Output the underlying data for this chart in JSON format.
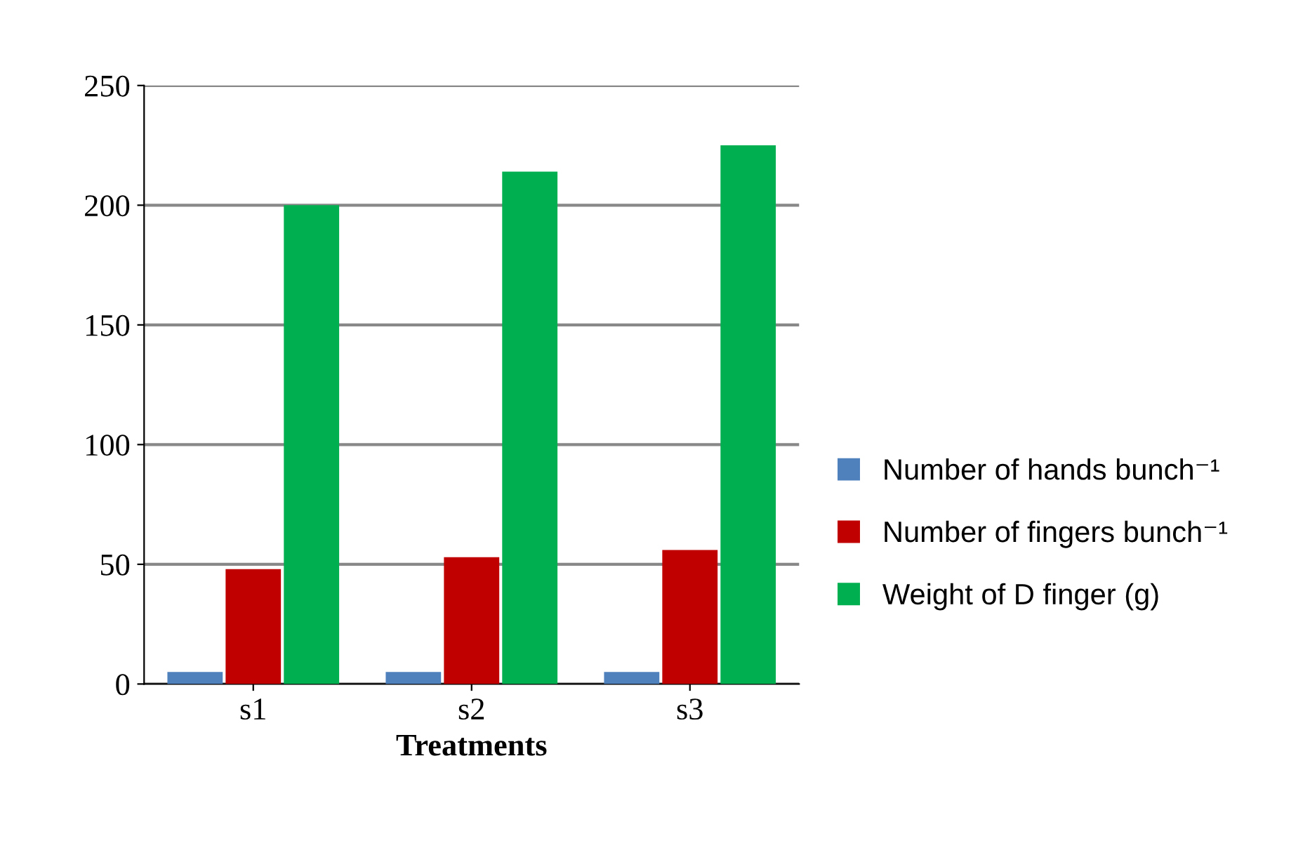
{
  "chart_data": {
    "type": "bar",
    "xlabel": "Treatments",
    "categories": [
      "s1",
      "s2",
      "s3"
    ],
    "series": [
      {
        "name": "Number of hands bunch⁻¹",
        "color": "#4f81bd",
        "values": [
          5,
          5,
          5
        ]
      },
      {
        "name": "Number of fingers bunch⁻¹",
        "color": "#c00000",
        "values": [
          48,
          53,
          56
        ]
      },
      {
        "name": "Weight of D finger (g)",
        "color": "#00b050",
        "values": [
          200,
          214,
          225
        ]
      }
    ],
    "ylim": [
      0,
      250
    ],
    "yticks": [
      0,
      50,
      100,
      150,
      200,
      250
    ],
    "grid": "y",
    "legend": "right"
  }
}
